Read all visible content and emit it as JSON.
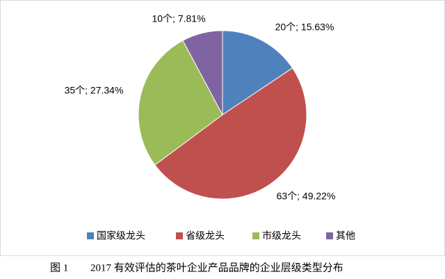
{
  "chart_data": {
    "type": "pie",
    "categories": [
      "国家级龙头",
      "省级龙头",
      "市级龙头",
      "其他"
    ],
    "values": [
      20,
      63,
      35,
      10
    ],
    "value_labels": [
      "20个; 15.63%",
      "63个; 49.22%",
      "35个; 27.34%",
      "10个; 7.81%"
    ],
    "colors": [
      "#4f81bd",
      "#c0504d",
      "#9bbb59",
      "#8064a2"
    ],
    "legend": "bottom",
    "figure_number": "图 1",
    "caption": "2017 有效评估的茶叶企业产品品牌的企业层级类型分布"
  }
}
